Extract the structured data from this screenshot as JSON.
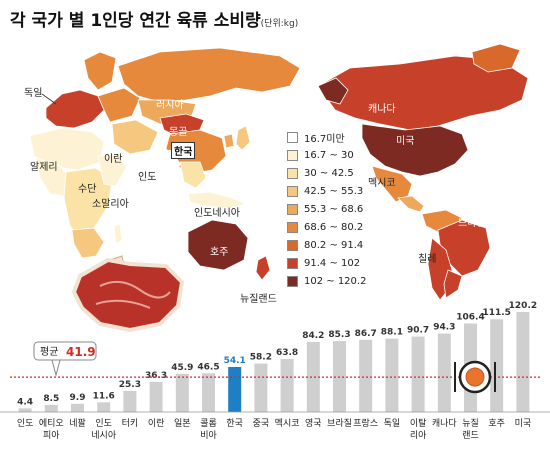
{
  "title": "각 국가 별 1인당 연간 육류 소비량",
  "unit": "(단위:kg)",
  "map": {
    "colors": {
      "ocean": "#ffffff",
      "c0": "#ffffff",
      "c1": "#fdf3d4",
      "c2": "#fbe3a8",
      "c3": "#f6c77f",
      "c4": "#eea85b",
      "c5": "#e6893d",
      "c6": "#d9682b",
      "c7": "#c7412a",
      "c8": "#7c2a22"
    },
    "labels": [
      {
        "key": "germany",
        "text": "독일"
      },
      {
        "key": "russia",
        "text": "러시아"
      },
      {
        "key": "mongolia",
        "text": "몽골"
      },
      {
        "key": "korea",
        "text": "한국"
      },
      {
        "key": "algeria",
        "text": "알제리"
      },
      {
        "key": "iran",
        "text": "이란"
      },
      {
        "key": "sudan",
        "text": "수단"
      },
      {
        "key": "india",
        "text": "인도"
      },
      {
        "key": "somalia",
        "text": "소말리아"
      },
      {
        "key": "indonesia",
        "text": "인도네시아"
      },
      {
        "key": "australia",
        "text": "호주"
      },
      {
        "key": "newzealand",
        "text": "뉴질랜드"
      },
      {
        "key": "canada",
        "text": "캐나다"
      },
      {
        "key": "usa",
        "text": "미국"
      },
      {
        "key": "mexico",
        "text": "멕시코"
      },
      {
        "key": "brazil",
        "text": "브라질"
      },
      {
        "key": "chile",
        "text": "칠레"
      }
    ]
  },
  "legend": [
    {
      "label": "16.7미만",
      "color": "#ffffff"
    },
    {
      "label": "16.7 ~ 30",
      "color": "#fdf3d4"
    },
    {
      "label": "30 ~ 42.5",
      "color": "#fbe3a8"
    },
    {
      "label": "42.5 ~ 55.3",
      "color": "#f6c77f"
    },
    {
      "label": "55.3 ~ 68.6",
      "color": "#eea85b"
    },
    {
      "label": "68.6 ~ 80.2",
      "color": "#e6893d"
    },
    {
      "label": "80.2 ~ 91.4",
      "color": "#d9682b"
    },
    {
      "label": "91.4 ~ 102",
      "color": "#c7412a"
    },
    {
      "label": "102 ~ 120.2",
      "color": "#7c2a22"
    }
  ],
  "chart_data": {
    "type": "bar",
    "categories": [
      "인도",
      "에티오피아",
      "네팔",
      "인도네시아",
      "터키",
      "이란",
      "일본",
      "콜롬비아",
      "한국",
      "중국",
      "멕시코",
      "영국",
      "브라질",
      "프랑스",
      "독일",
      "이탈리아",
      "캐나다",
      "뉴질랜드",
      "호주",
      "미국"
    ],
    "category_lines": [
      [
        "인도"
      ],
      [
        "에티오",
        "피아"
      ],
      [
        "네팔"
      ],
      [
        "인도",
        "네시아"
      ],
      [
        "터키"
      ],
      [
        "이란"
      ],
      [
        "일본"
      ],
      [
        "콜롬",
        "비아"
      ],
      [
        "한국"
      ],
      [
        "중국"
      ],
      [
        "멕시코"
      ],
      [
        "영국"
      ],
      [
        "브라질"
      ],
      [
        "프랑스"
      ],
      [
        "독일"
      ],
      [
        "이탈",
        "리아"
      ],
      [
        "캐나다"
      ],
      [
        "뉴질",
        "랜드"
      ],
      [
        "호주"
      ],
      [
        "미국"
      ]
    ],
    "values": [
      4.4,
      8.5,
      9.9,
      11.6,
      25.3,
      36.3,
      45.9,
      46.5,
      54.1,
      58.2,
      63.8,
      84.2,
      85.3,
      86.7,
      88.1,
      90.7,
      94.3,
      106.4,
      111.5,
      120.2
    ],
    "value_labels": [
      "4.4",
      "8.5",
      "9.9",
      "11.6",
      "25.3",
      "36.3",
      "45.9",
      "46.5",
      "54.1",
      "58.2",
      "63.8",
      "84.2",
      "85.3",
      "86.7",
      "88.1",
      "90.7",
      "94.3",
      "106.4",
      "111.5",
      "120.2"
    ],
    "highlight": "한국",
    "ylim": [
      0,
      125
    ],
    "average": {
      "label": "평균",
      "value": 41.9,
      "value_label": "41.9"
    },
    "colors": {
      "bar": "#cfcfcf",
      "highlight": "#1f7fc4",
      "average": "#d62b1f"
    }
  }
}
